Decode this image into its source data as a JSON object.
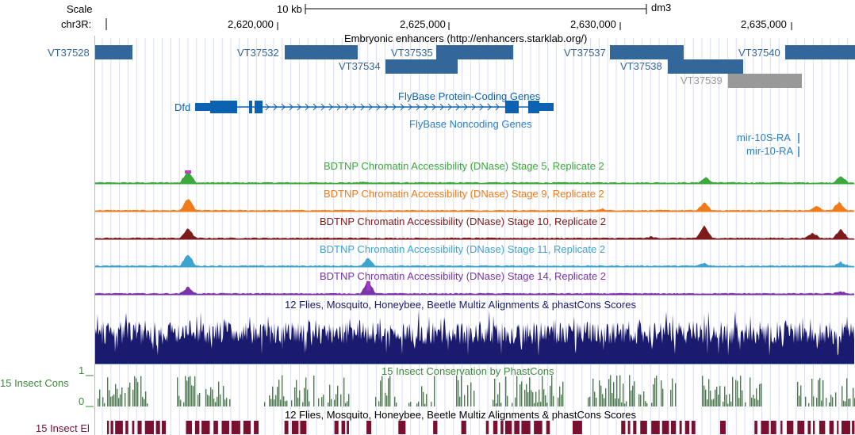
{
  "header": {
    "scale_label": "Scale",
    "scale_value": "10 kb",
    "assembly": "dm3",
    "chrom_label": "chr3R:"
  },
  "ruler": {
    "positions": [
      "2,620,000",
      "2,625,000",
      "2,630,000",
      "2,635,000"
    ]
  },
  "tracks": {
    "enhancers": {
      "title": "Embryonic enhancers (http://enhancers.starklab.org/)",
      "color": "#336699",
      "faded_color": "#999999",
      "items": [
        {
          "name": "VT37528",
          "faded": false
        },
        {
          "name": "VT37532",
          "faded": false
        },
        {
          "name": "VT37534",
          "faded": false
        },
        {
          "name": "VT37535",
          "faded": false
        },
        {
          "name": "VT37537",
          "faded": false
        },
        {
          "name": "VT37538",
          "faded": false
        },
        {
          "name": "VT37539",
          "faded": true
        },
        {
          "name": "VT37540",
          "faded": false
        }
      ]
    },
    "protein_coding": {
      "title": "FlyBase Protein-Coding Genes",
      "gene": "Dfd",
      "color": "#0b62b3"
    },
    "noncoding": {
      "title": "FlyBase Noncoding Genes",
      "genes": [
        "mir-10S-RA",
        "mir-10-RA"
      ],
      "color": "#2a7fc8"
    },
    "dnase": [
      {
        "title": "BDTNP Chromatin Accessibility (DNase) Stage 5, Replicate 2",
        "color": "#3aa83a"
      },
      {
        "title": "BDTNP Chromatin Accessibility (DNase) Stage 9, Replicate 2",
        "color": "#ef7b1a"
      },
      {
        "title": "BDTNP Chromatin Accessibility (DNase) Stage 10, Replicate 2",
        "color": "#7d1a1a"
      },
      {
        "title": "BDTNP Chromatin Accessibility (DNase) Stage 11, Replicate 2",
        "color": "#3fa3cf"
      },
      {
        "title": "BDTNP Chromatin Accessibility (DNase) Stage 14, Replicate 2",
        "color": "#7a35a8"
      }
    ],
    "multiz": {
      "title": "12 Flies, Mosquito, Honeybee, Beetle Multiz Alignments & phastCons Scores",
      "color": "#1a1a6e"
    },
    "insect_cons": {
      "title": "15 Insect Conservation by PhastCons",
      "side_label": "15 Insect Cons",
      "y_max": "1",
      "y_min": "0",
      "color": "#3d8a3d"
    },
    "insect_el": {
      "title": "12 Flies, Mosquito, Honeybee, Beetle Multiz Alignments & phastCons Scores",
      "side_label": "15 Insect El",
      "color": "#7a1030"
    }
  }
}
